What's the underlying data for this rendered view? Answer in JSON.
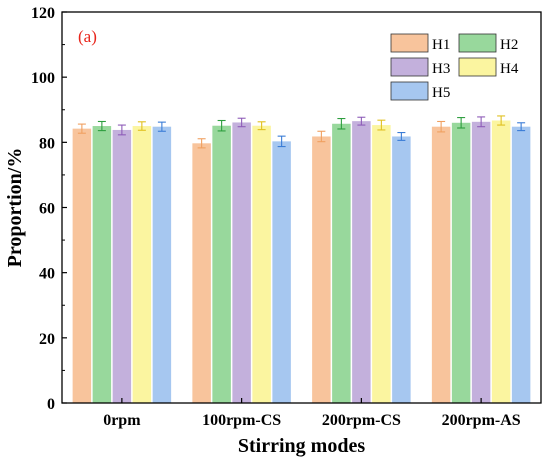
{
  "chart_data": {
    "type": "bar",
    "panel_label": "(a)",
    "panel_label_color": "#e8241a",
    "title": "",
    "xlabel": "Stirring modes",
    "ylabel": "Proportion/%",
    "ylim": [
      0,
      120
    ],
    "yticks": [
      0,
      20,
      40,
      60,
      80,
      100,
      120
    ],
    "grid": false,
    "legend_position": "top-right",
    "categories": [
      "0rpm",
      "100rpm-CS",
      "200rpm-CS",
      "200rpm-AS"
    ],
    "series": [
      {
        "name": "H1",
        "values": [
          84.2,
          79.7,
          81.8,
          84.8
        ],
        "errors": [
          1.4,
          1.4,
          1.6,
          1.6
        ],
        "color": "#f8c49c",
        "error_color": "#f0a060"
      },
      {
        "name": "H2",
        "values": [
          85.0,
          85.1,
          85.7,
          86.0
        ],
        "errors": [
          1.4,
          1.6,
          1.6,
          1.6
        ],
        "color": "#98d89c",
        "error_color": "#2d9e3e"
      },
      {
        "name": "H3",
        "values": [
          83.8,
          86.1,
          86.5,
          86.3
        ],
        "errors": [
          1.5,
          1.3,
          1.2,
          1.5
        ],
        "color": "#c3b0dc",
        "error_color": "#8e5cb8"
      },
      {
        "name": "H4",
        "values": [
          85.0,
          85.1,
          85.3,
          86.7
        ],
        "errors": [
          1.3,
          1.2,
          1.5,
          1.4
        ],
        "color": "#fbf5a0",
        "error_color": "#e0c020"
      },
      {
        "name": "H5",
        "values": [
          84.8,
          80.3,
          81.8,
          84.8
        ],
        "errors": [
          1.4,
          1.6,
          1.2,
          1.2
        ],
        "color": "#a6c7f0",
        "error_color": "#3a7cd6"
      }
    ]
  }
}
